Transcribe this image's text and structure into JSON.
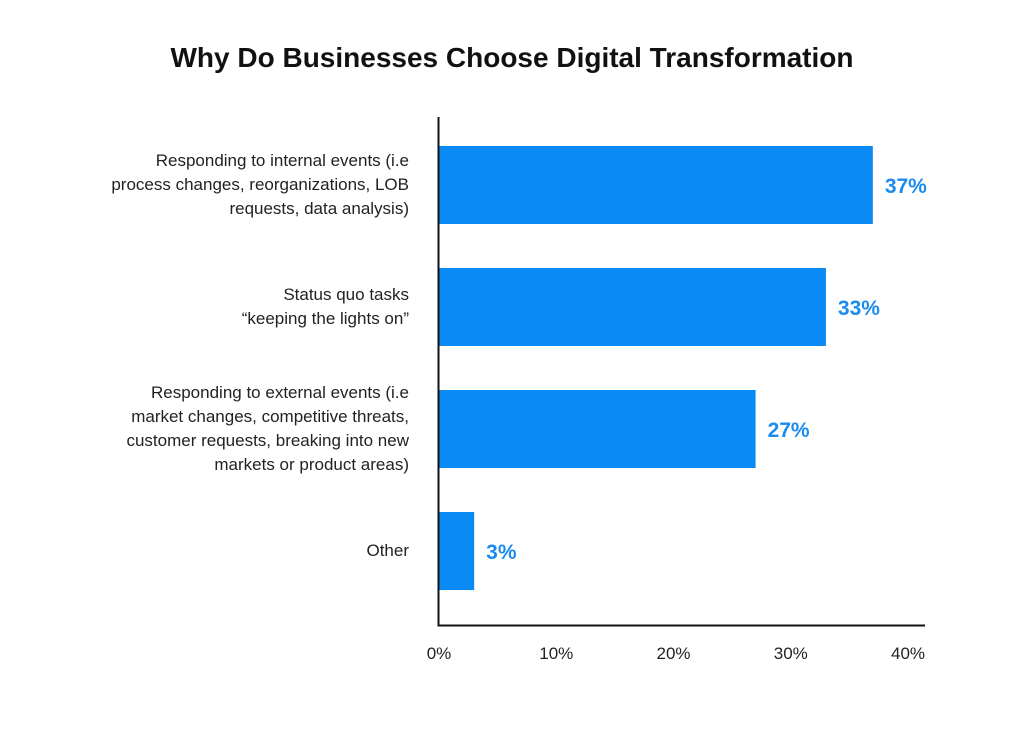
{
  "chart_data": {
    "type": "bar",
    "orientation": "horizontal",
    "title": "Why Do Businesses Choose Digital Transformation",
    "categories": [
      [
        "Responding to internal events (i.e",
        "process changes, reorganizations, LOB",
        "requests, data analysis)"
      ],
      [
        "Status quo tasks",
        "“keeping the lights on”"
      ],
      [
        "Responding to external events (i.e",
        "market changes, competitive threats,",
        "customer requests, breaking into new",
        "markets or product areas)"
      ],
      [
        "Other"
      ]
    ],
    "values": [
      37,
      33,
      27,
      3
    ],
    "data_labels": [
      "37%",
      "33%",
      "27%",
      "3%"
    ],
    "xlim": [
      0,
      40
    ],
    "x_ticks": [
      0,
      10,
      20,
      30,
      40
    ],
    "x_tick_labels": [
      "0%",
      "10%",
      "20%",
      "30%",
      "40%"
    ],
    "grid": false,
    "colors": {
      "bar": "#0a8af5",
      "data_label": "#1a8cf0",
      "axis": "#111111",
      "text": "#222222"
    }
  }
}
